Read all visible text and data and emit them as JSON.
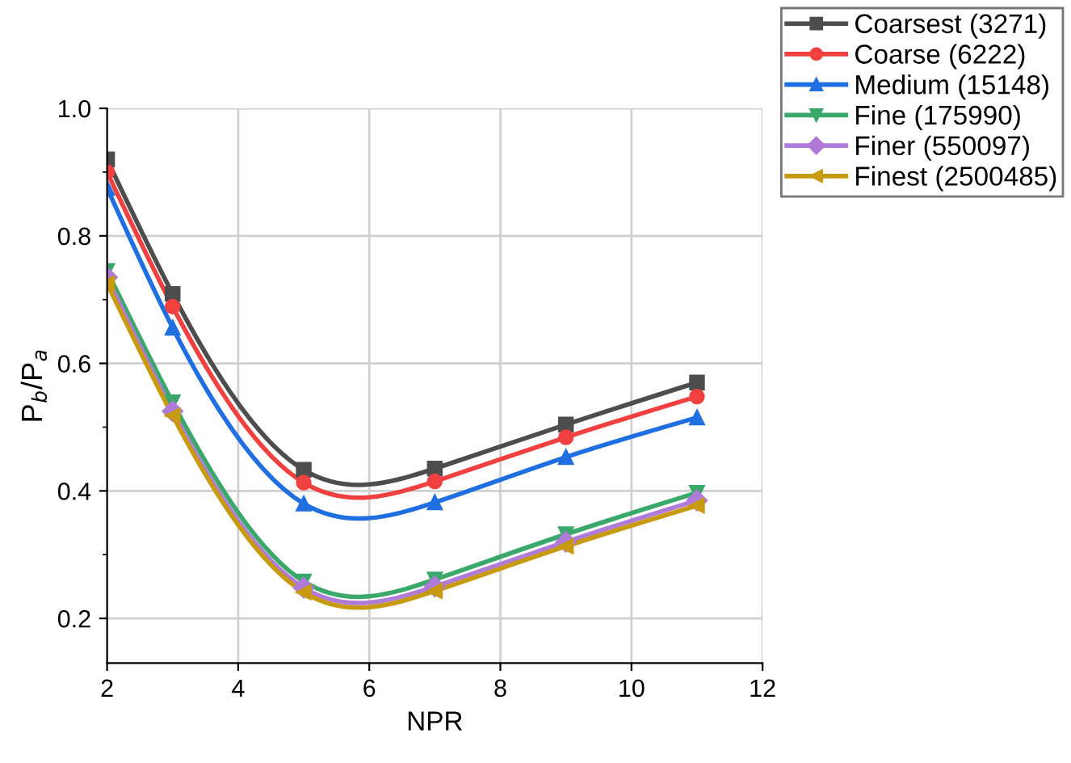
{
  "chart_data": {
    "type": "line",
    "xlabel": "NPR",
    "ylabel": "P$_{b}$/P$_{a}$",
    "x": [
      2,
      3,
      5,
      7,
      9,
      11
    ],
    "series": [
      {
        "name": "Coarsest (3271)",
        "color": "#4d4d4d",
        "marker": "square",
        "values": [
          0.92,
          0.709,
          0.433,
          0.435,
          0.504,
          0.57
        ]
      },
      {
        "name": "Coarse (6222)",
        "color": "#f04040",
        "marker": "circle",
        "values": [
          0.9,
          0.689,
          0.413,
          0.415,
          0.484,
          0.548
        ]
      },
      {
        "name": "Medium (15148)",
        "color": "#1f6fe0",
        "marker": "triangle",
        "values": [
          0.875,
          0.656,
          0.38,
          0.382,
          0.453,
          0.515
        ]
      },
      {
        "name": "Fine (175990)",
        "color": "#3aa86b",
        "marker": "triangle_down",
        "values": [
          0.745,
          0.539,
          0.258,
          0.261,
          0.332,
          0.397
        ]
      },
      {
        "name": "Finer (550097)",
        "color": "#b07ad8",
        "marker": "diamond",
        "values": [
          0.735,
          0.525,
          0.248,
          0.25,
          0.32,
          0.385
        ]
      },
      {
        "name": "Finest (2500485)",
        "color": "#c89a10",
        "marker": "triangle_left",
        "values": [
          0.725,
          0.518,
          0.241,
          0.243,
          0.313,
          0.377
        ]
      }
    ],
    "xlim": [
      2,
      12
    ],
    "xticks": [
      2,
      4,
      6,
      8,
      10,
      12
    ],
    "ylim": [
      0.13,
      1.0
    ],
    "yticks": [
      0.2,
      0.4,
      0.6,
      0.8,
      {
        "value": 1.0,
        "label": "1.0"
      }
    ],
    "grid": true,
    "legend": "top right",
    "line_style": "solid"
  }
}
